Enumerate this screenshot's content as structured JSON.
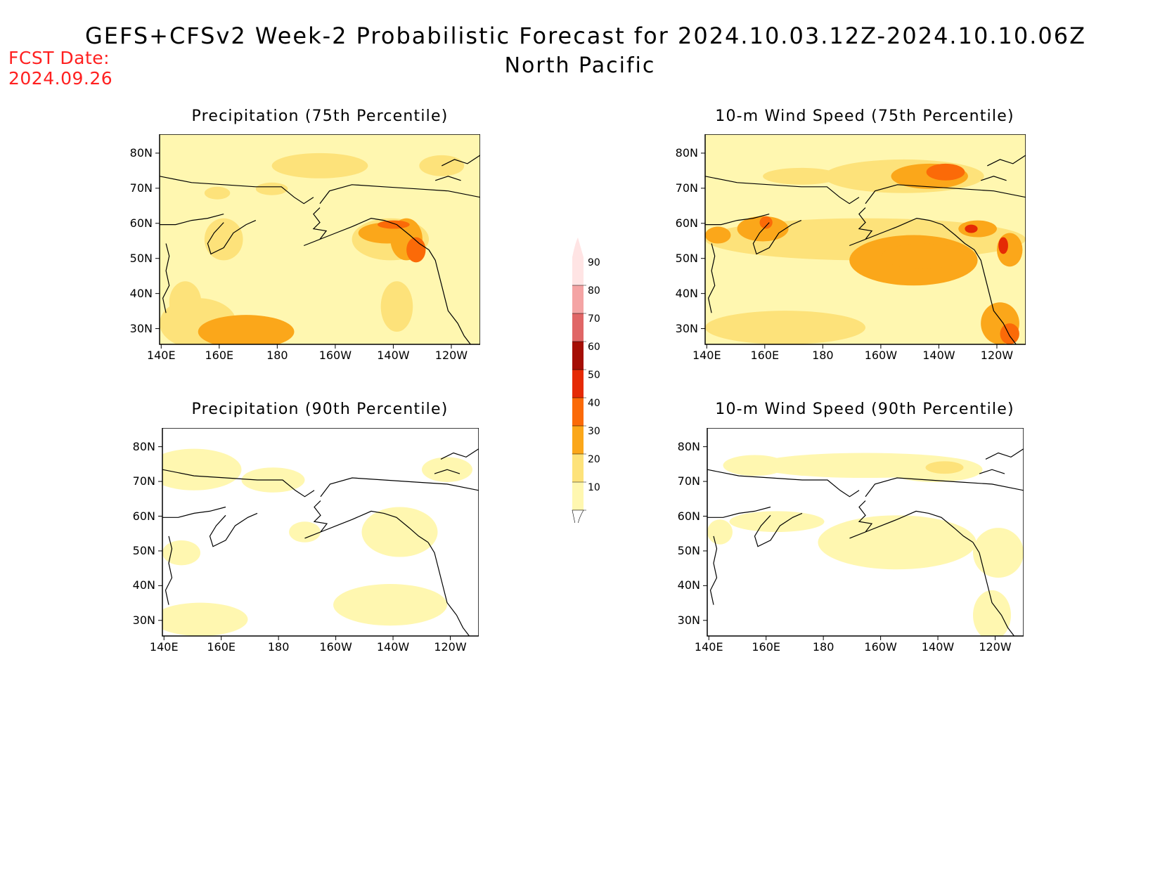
{
  "fcst_date": {
    "label": "FCST Date:",
    "value": "2024.09.26"
  },
  "title": "GEFS+CFSv2 Week-2 Probabilistic Forecast for 2024.10.03.12Z-2024.10.10.06Z",
  "region": "North Pacific",
  "panels": [
    {
      "id": "precip-75",
      "title": "Precipitation (75th Percentile)"
    },
    {
      "id": "wind-75",
      "title": "10-m Wind Speed (75th Percentile)"
    },
    {
      "id": "precip-90",
      "title": "Precipitation (90th Percentile)"
    },
    {
      "id": "wind-90",
      "title": "10-m Wind Speed (90th Percentile)"
    }
  ],
  "axes": {
    "lat_labels": [
      "80N",
      "70N",
      "60N",
      "50N",
      "40N",
      "30N"
    ],
    "lon_labels": [
      "140E",
      "160E",
      "180",
      "160W",
      "140W",
      "120W"
    ]
  },
  "colorbar": {
    "levels": [
      "10",
      "20",
      "30",
      "40",
      "50",
      "60",
      "70",
      "80",
      "90"
    ],
    "colors": [
      "#fff7b0",
      "#fde27a",
      "#fba71a",
      "#fb6a08",
      "#e52a05",
      "#a50e05",
      "#e06666",
      "#f4a4a4",
      "#ffe4e4"
    ],
    "units": "%"
  }
}
